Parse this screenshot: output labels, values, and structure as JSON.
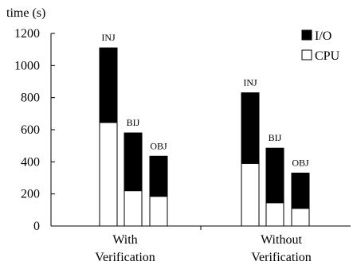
{
  "chart_data": {
    "type": "bar",
    "stacked": true,
    "ylabel": "time (s)",
    "ylim": [
      0,
      1200
    ],
    "yticks": [
      0,
      200,
      400,
      600,
      800,
      1000,
      1200
    ],
    "grid": false,
    "legend": {
      "placement": "top-right"
    },
    "groups": [
      {
        "label_lines": [
          "With",
          "Verification"
        ],
        "bars": [
          "INJ",
          "BIJ",
          "OBJ"
        ]
      },
      {
        "label_lines": [
          "Without",
          "Verification"
        ],
        "bars": [
          "INJ",
          "BIJ",
          "OBJ"
        ]
      }
    ],
    "series": [
      {
        "name": "CPU",
        "color": "#ffffff",
        "values": [
          [
            645,
            220,
            185
          ],
          [
            390,
            145,
            110
          ]
        ]
      },
      {
        "name": "I/O",
        "color": "#000000",
        "values": [
          [
            465,
            360,
            250
          ],
          [
            440,
            340,
            220
          ]
        ]
      }
    ]
  }
}
